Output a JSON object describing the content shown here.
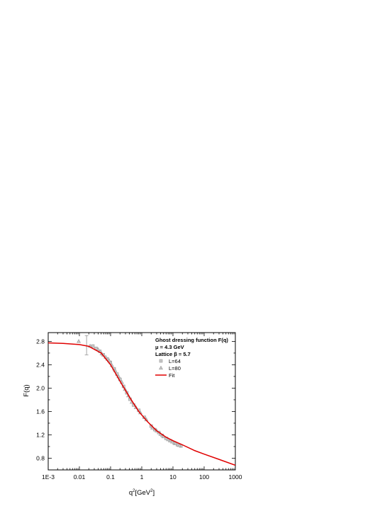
{
  "chart_data": {
    "type": "scatter",
    "xlabel": "q",
    "xlabel_sup1": "2",
    "xlabel_rest": "[GeV",
    "xlabel_sup2": "2",
    "xlabel_end": "]",
    "ylabel": "F(q)",
    "xscale": "log",
    "xlim": [
      0.001,
      1000
    ],
    "ylim": [
      0.6,
      2.95
    ],
    "x_ticks": [
      0.001,
      0.01,
      0.1,
      1,
      10,
      100,
      1000
    ],
    "x_tick_labels": [
      "1E-3",
      "0.01",
      "0.1",
      "1",
      "10",
      "100",
      "1000"
    ],
    "y_ticks": [
      0.8,
      1.2,
      1.6,
      2.0,
      2.4,
      2.8
    ],
    "y_tick_labels": [
      "0.8",
      "1.2",
      "1.6",
      "2.0",
      "2.4",
      "2.8"
    ],
    "grid": false,
    "legend_position": "top-right",
    "legend": {
      "title_lines": [
        "Ghost dressing function F(q)",
        "μ = 4.3 GeV",
        "Lattice β = 5.7"
      ],
      "entries": [
        "L=64",
        "L=80",
        "Fit"
      ]
    },
    "series": [
      {
        "name": "L=64",
        "marker": "square",
        "color": "#a0a0a0",
        "points": [
          [
            0.027,
            2.72
          ],
          [
            0.034,
            2.68
          ],
          [
            0.045,
            2.63
          ],
          [
            0.058,
            2.57
          ],
          [
            0.078,
            2.5
          ],
          [
            0.098,
            2.44
          ],
          [
            0.13,
            2.33
          ],
          [
            0.16,
            2.24
          ],
          [
            0.2,
            2.15
          ],
          [
            0.26,
            2.03
          ],
          [
            0.33,
            1.92
          ],
          [
            0.42,
            1.81
          ],
          [
            0.55,
            1.71
          ],
          [
            0.8,
            1.62
          ],
          [
            1.2,
            1.5
          ],
          [
            2.0,
            1.35
          ],
          [
            2.6,
            1.29
          ],
          [
            3.5,
            1.24
          ],
          [
            4.5,
            1.19
          ],
          [
            6.0,
            1.14
          ],
          [
            8.0,
            1.1
          ],
          [
            11,
            1.06
          ],
          [
            14,
            1.03
          ],
          [
            18,
            1.01
          ]
        ]
      },
      {
        "name": "L=80",
        "marker": "triangle",
        "color": "#a0a0a0",
        "points": [
          [
            0.0095,
            2.8
          ],
          [
            0.022,
            2.72
          ],
          [
            0.04,
            2.66
          ],
          [
            0.052,
            2.59
          ],
          [
            0.07,
            2.53
          ],
          [
            0.09,
            2.47
          ],
          [
            0.11,
            2.39
          ],
          [
            0.14,
            2.3
          ],
          [
            0.18,
            2.2
          ],
          [
            0.23,
            2.1
          ],
          [
            0.29,
            1.98
          ],
          [
            0.37,
            1.87
          ],
          [
            0.48,
            1.76
          ],
          [
            0.65,
            1.67
          ],
          [
            0.9,
            1.58
          ],
          [
            1.4,
            1.46
          ],
          [
            2.2,
            1.32
          ],
          [
            3.0,
            1.27
          ],
          [
            4.0,
            1.21
          ],
          [
            5.0,
            1.17
          ],
          [
            7.0,
            1.12
          ],
          [
            9.5,
            1.08
          ],
          [
            12,
            1.05
          ],
          [
            16,
            1.02
          ]
        ],
        "error_bar": {
          "x": 0.017,
          "y": 2.73,
          "low": 2.57,
          "high": 2.9
        }
      },
      {
        "name": "Fit",
        "line": true,
        "color": "#e00000",
        "points": [
          [
            0.001,
            2.775
          ],
          [
            0.003,
            2.765
          ],
          [
            0.01,
            2.745
          ],
          [
            0.02,
            2.715
          ],
          [
            0.05,
            2.6
          ],
          [
            0.1,
            2.4
          ],
          [
            0.2,
            2.12
          ],
          [
            0.4,
            1.85
          ],
          [
            0.8,
            1.6
          ],
          [
            1.5,
            1.43
          ],
          [
            3,
            1.27
          ],
          [
            6,
            1.16
          ],
          [
            10,
            1.1
          ],
          [
            20,
            1.03
          ],
          [
            50,
            0.93
          ],
          [
            100,
            0.87
          ],
          [
            300,
            0.78
          ],
          [
            1000,
            0.68
          ]
        ]
      }
    ]
  }
}
